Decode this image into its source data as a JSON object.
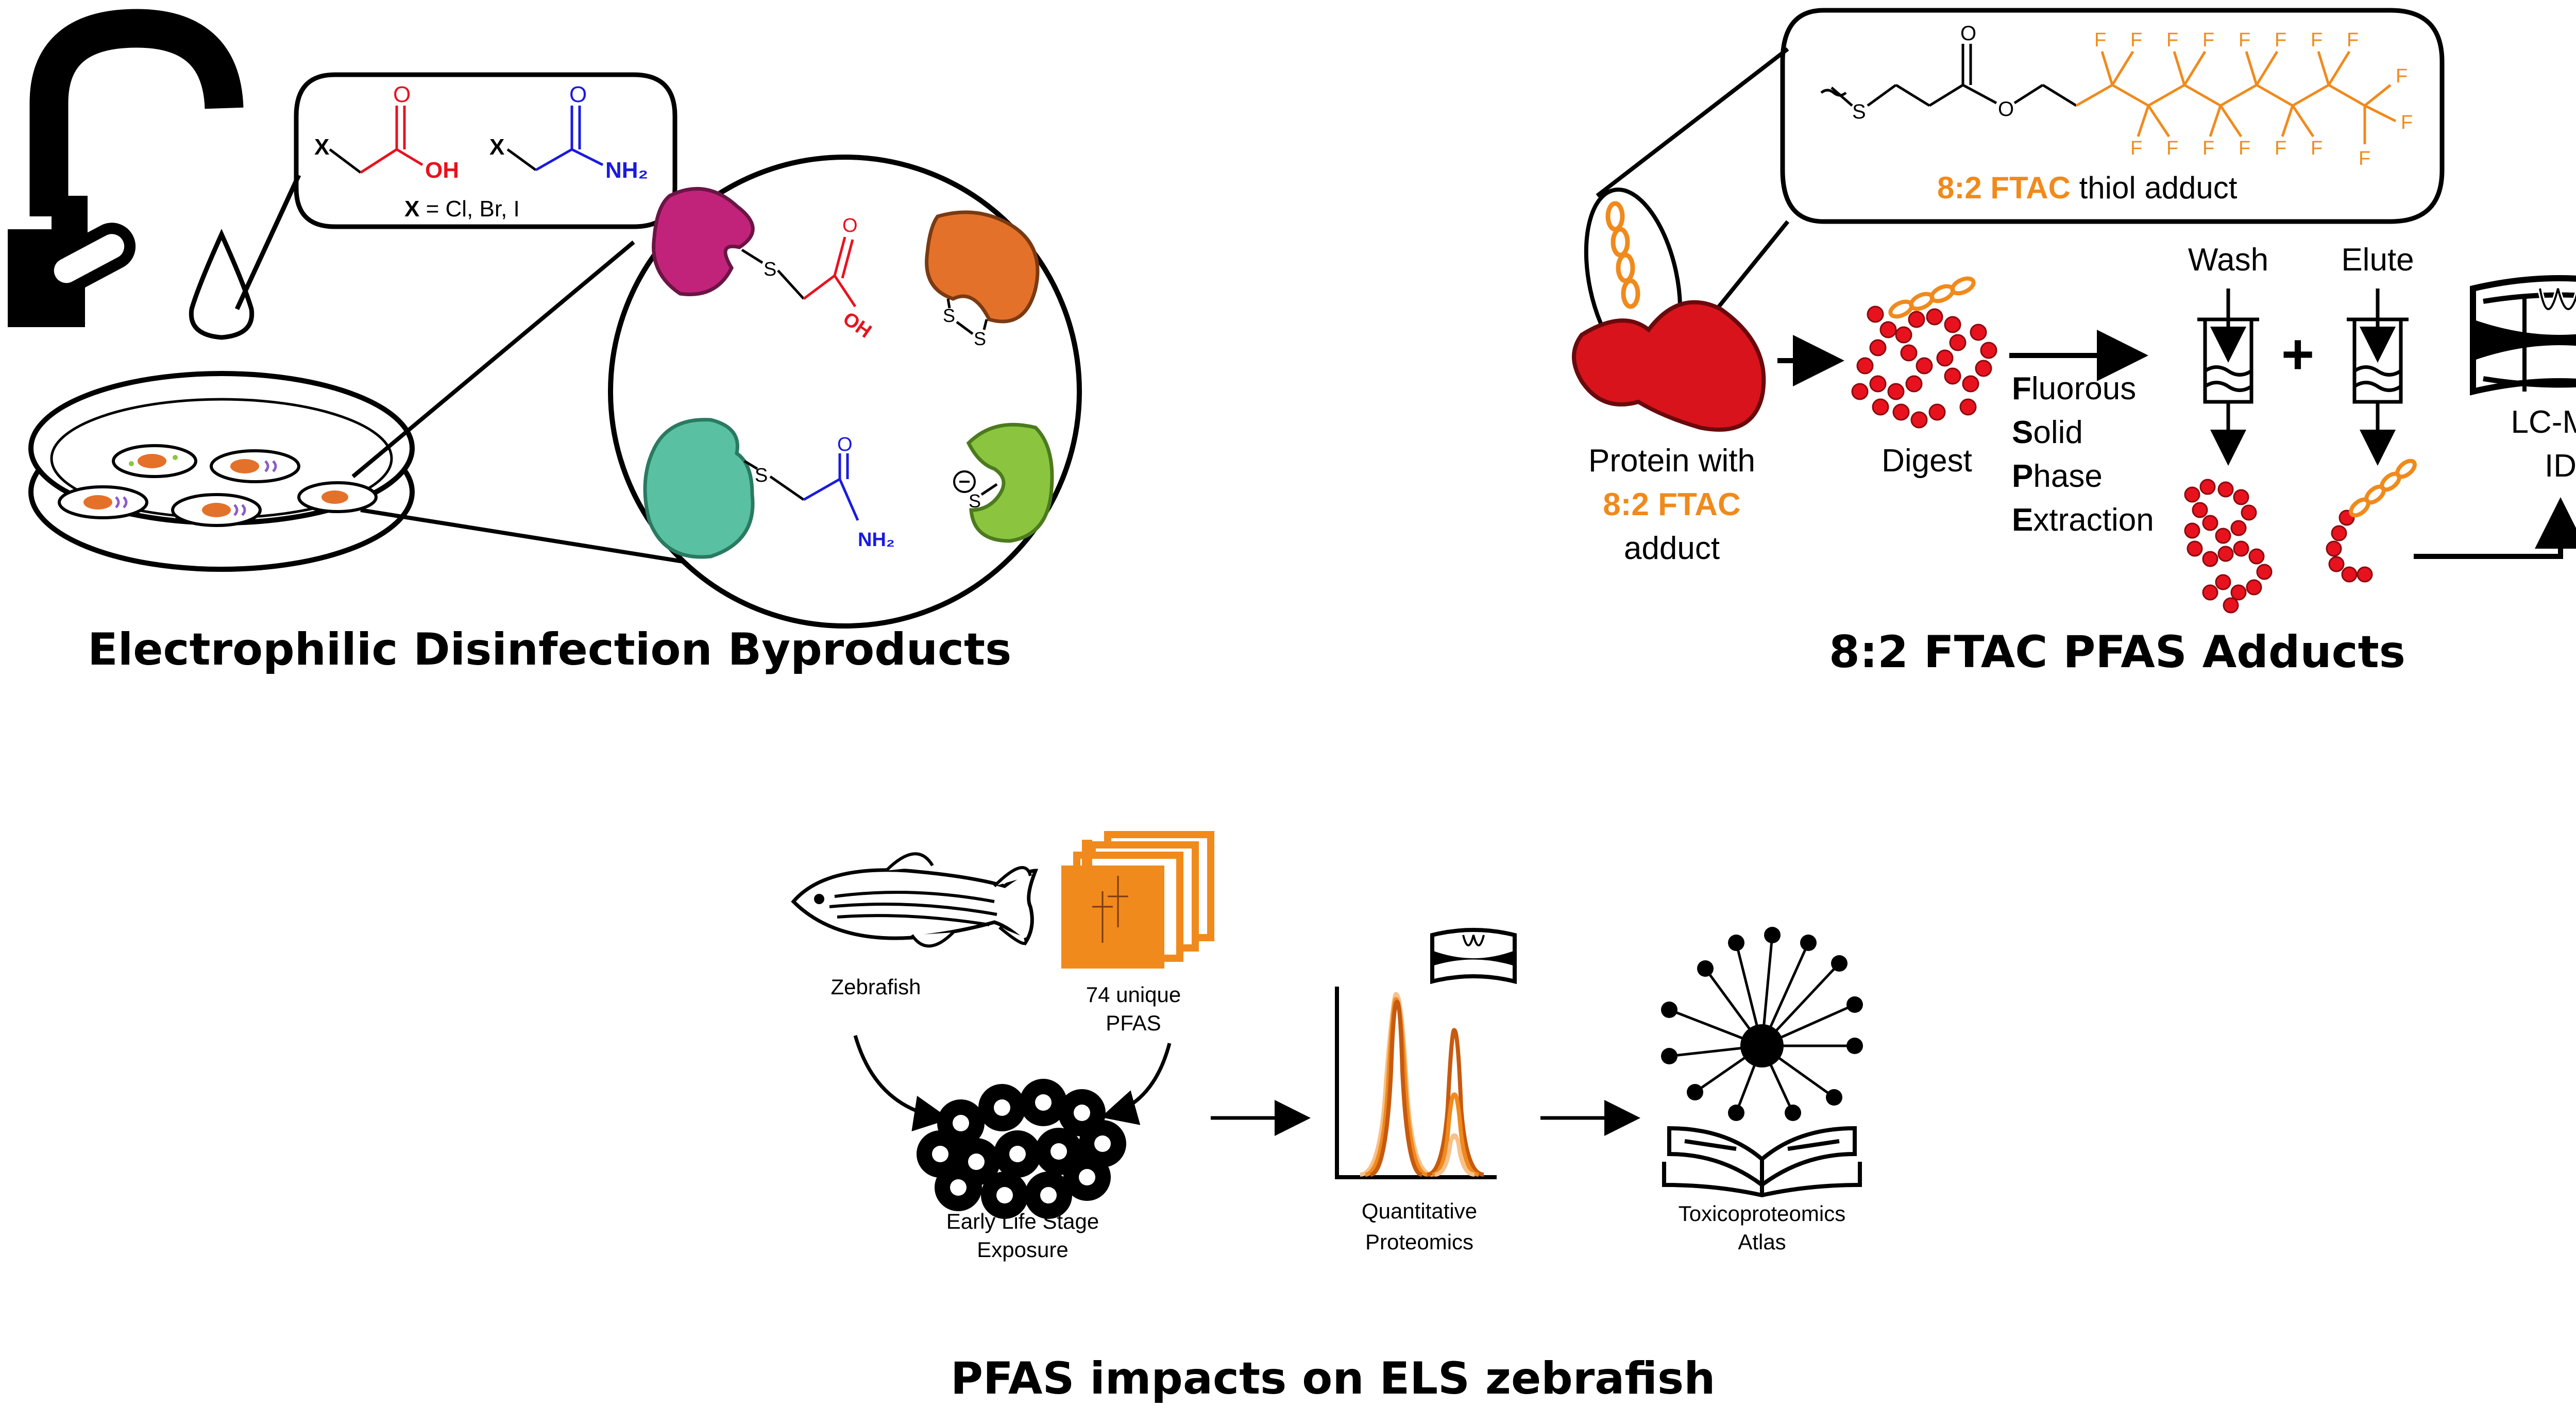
{
  "colors": {
    "ink": "#000000",
    "acid_red": "#e8121e",
    "amide_blue": "#1a1ae0",
    "ftac_orange": "#f08a1c",
    "protein_red": "#d9131b",
    "magenta": "#c2237a",
    "orange_protein": "#e4712a",
    "teal": "#59c1a2",
    "lime": "#8bc53f"
  },
  "panel1": {
    "title": "Electrophilic Disinfection Byproducts",
    "structure_x1": "X",
    "structure_x2": "X",
    "structure_o1": "O",
    "structure_oh": "OH",
    "structure_o2": "O",
    "structure_nh2": "NH₂",
    "halide_x": "X",
    "halide_rest": " = Cl, Br, I",
    "zoom_s1": "S",
    "zoom_o1": "O",
    "zoom_oh": "OH",
    "zoom_ss_a": "S",
    "zoom_ss_b": "S",
    "zoom_s2": "S",
    "zoom_o2": "O",
    "zoom_nh2": "NH₂",
    "zoom_thiolate": "S",
    "icons": [
      "faucet-icon",
      "droplet-icon",
      "petri-dish-icon"
    ]
  },
  "panel2": {
    "title": "8:2 FTAC PFAS Adducts",
    "adduct_label_orange": "8:2 FTAC",
    "adduct_label_rest": " thiol adduct",
    "struct_s": "S",
    "struct_o_carbonyl": "O",
    "struct_o_ester": "O",
    "fluorine": "F",
    "protein_line1": "Protein with",
    "protein_line2": "8:2 FTAC",
    "protein_line3": "adduct",
    "digest": "Digest",
    "fspe": [
      {
        "initial": "F",
        "rest": "luorous"
      },
      {
        "initial": "S",
        "rest": "olid"
      },
      {
        "initial": "P",
        "rest": "hase"
      },
      {
        "initial": "E",
        "rest": "xtraction"
      }
    ],
    "wash": "Wash",
    "elute": "Elute",
    "plus": "+",
    "lcms_line1": "LC-MS",
    "lcms_line2": "ID"
  },
  "panel3": {
    "title": "PFAS impacts on ELS zebrafish",
    "zebrafish": "Zebrafish",
    "pfas_line1": "74 unique",
    "pfas_line2": "PFAS",
    "els_line1": "Early Life Stage",
    "els_line2": "Exposure",
    "quant_line1": "Quantitative",
    "quant_line2": "Proteomics",
    "tox_line1": "Toxicoproteomics",
    "tox_line2": "Atlas"
  }
}
